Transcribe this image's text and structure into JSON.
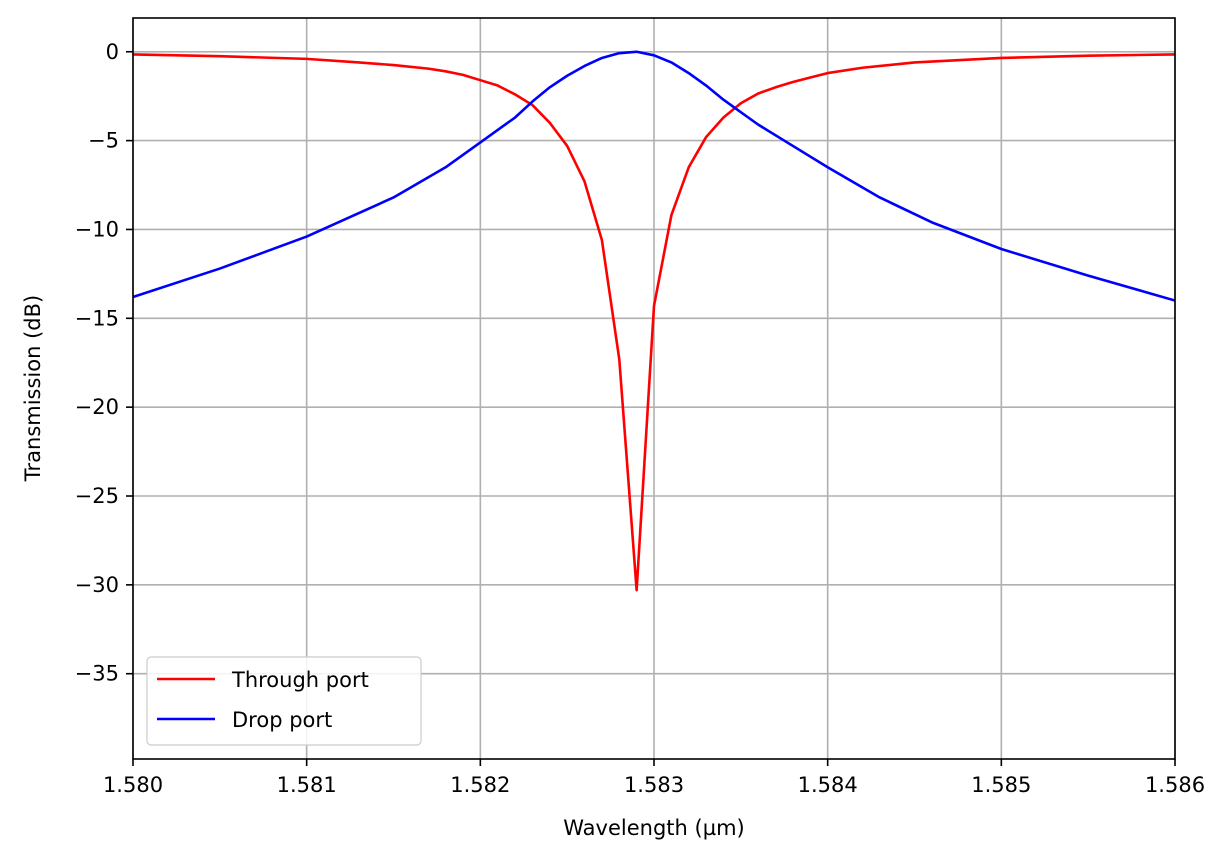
{
  "chart_data": {
    "type": "line",
    "title": "",
    "xlabel": "Wavelength (µm)",
    "ylabel": "Transmission (dB)",
    "xlim": [
      1.58,
      1.586
    ],
    "ylim": [
      -39.8,
      1.9
    ],
    "xticks": [
      1.58,
      1.581,
      1.582,
      1.583,
      1.584,
      1.585,
      1.586
    ],
    "xtick_labels": [
      "1.580",
      "1.581",
      "1.582",
      "1.583",
      "1.584",
      "1.585",
      "1.586"
    ],
    "yticks": [
      0,
      -5,
      -10,
      -15,
      -20,
      -25,
      -30,
      -35
    ],
    "ytick_labels": [
      "0",
      "−5",
      "−10",
      "−15",
      "−20",
      "−25",
      "−30",
      "−35"
    ],
    "grid": true,
    "legend_position": "lower-left",
    "series": [
      {
        "name": "Through port",
        "color": "#ff0000",
        "x": [
          1.58,
          1.5805,
          1.581,
          1.5813,
          1.5815,
          1.5817,
          1.5818,
          1.5819,
          1.582,
          1.5821,
          1.5822,
          1.5823,
          1.5824,
          1.5825,
          1.5826,
          1.5827,
          1.5828,
          1.5829,
          1.583,
          1.5831,
          1.5832,
          1.5833,
          1.5834,
          1.5835,
          1.5836,
          1.5837,
          1.5838,
          1.5839,
          1.584,
          1.5842,
          1.5845,
          1.585,
          1.5855,
          1.586
        ],
        "y": [
          -0.15,
          -0.25,
          -0.4,
          -0.6,
          -0.75,
          -0.95,
          -1.1,
          -1.3,
          -1.6,
          -1.9,
          -2.4,
          -3.0,
          -4.0,
          -5.3,
          -7.3,
          -10.6,
          -17.3,
          -30.3,
          -14.3,
          -9.2,
          -6.5,
          -4.8,
          -3.7,
          -2.9,
          -2.35,
          -2.0,
          -1.7,
          -1.45,
          -1.2,
          -0.9,
          -0.6,
          -0.35,
          -0.22,
          -0.15
        ]
      },
      {
        "name": "Drop port",
        "color": "#0000ff",
        "x": [
          1.58,
          1.5805,
          1.581,
          1.5815,
          1.5818,
          1.582,
          1.5822,
          1.5823,
          1.5824,
          1.5825,
          1.5826,
          1.5827,
          1.5828,
          1.5829,
          1.583,
          1.5831,
          1.5832,
          1.5833,
          1.5834,
          1.5835,
          1.5836,
          1.5838,
          1.584,
          1.5843,
          1.5846,
          1.585,
          1.5855,
          1.586
        ],
        "y": [
          -13.8,
          -12.2,
          -10.4,
          -8.2,
          -6.5,
          -5.1,
          -3.7,
          -2.8,
          -2.0,
          -1.35,
          -0.8,
          -0.35,
          -0.08,
          0.0,
          -0.2,
          -0.6,
          -1.2,
          -1.9,
          -2.7,
          -3.4,
          -4.1,
          -5.3,
          -6.5,
          -8.2,
          -9.6,
          -11.1,
          -12.6,
          -14.0
        ]
      }
    ]
  }
}
